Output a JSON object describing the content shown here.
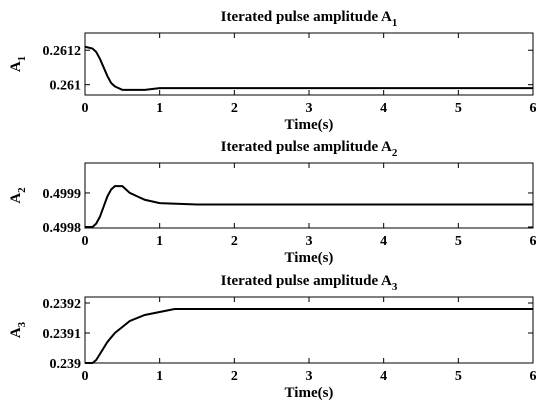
{
  "chart_data": [
    {
      "type": "line",
      "title": "Iterated pulse amplitude A",
      "title_subscript": "1",
      "xlabel": "Time(s)",
      "ylabel": "A",
      "ylabel_subscript": "1",
      "x": [
        0,
        0.1,
        0.15,
        0.2,
        0.25,
        0.3,
        0.35,
        0.4,
        0.45,
        0.5,
        0.55,
        0.6,
        0.8,
        1,
        2,
        3,
        4,
        5,
        6
      ],
      "series": [
        {
          "color": "#000000",
          "values": [
            0.26122,
            0.26121,
            0.26119,
            0.26115,
            0.2611,
            0.26105,
            0.26101,
            0.26099,
            0.26098,
            0.26097,
            0.26097,
            0.26097,
            0.26097,
            0.26098,
            0.26098,
            0.26098,
            0.26098,
            0.26098,
            0.26098
          ]
        }
      ],
      "xlim": [
        0,
        6
      ],
      "xticks": [
        0,
        1,
        2,
        3,
        4,
        5,
        6
      ],
      "ylim": [
        0.26094,
        0.2613
      ],
      "yticks": [
        0.261,
        0.2612
      ]
    },
    {
      "type": "line",
      "title": "Iterated pulse amplitude A",
      "title_subscript": "2",
      "xlabel": "Time(s)",
      "ylabel": "A",
      "ylabel_subscript": "2",
      "x": [
        0,
        0.1,
        0.15,
        0.2,
        0.25,
        0.3,
        0.35,
        0.4,
        0.45,
        0.5,
        0.55,
        0.6,
        0.8,
        1,
        1.5,
        2,
        3,
        4,
        5,
        6
      ],
      "series": [
        {
          "color": "#000000",
          "values": [
            0.4998,
            0.4998,
            0.49981,
            0.49983,
            0.49986,
            0.49989,
            0.49991,
            0.49992,
            0.49992,
            0.49992,
            0.49991,
            0.4999,
            0.49988,
            0.49987,
            0.499866,
            0.499866,
            0.499866,
            0.499866,
            0.499866,
            0.499866
          ]
        }
      ],
      "xlim": [
        0,
        6
      ],
      "xticks": [
        0,
        1,
        2,
        3,
        4,
        5,
        6
      ],
      "ylim": [
        0.499797,
        0.499988
      ],
      "yticks": [
        0.4998,
        0.4999
      ]
    },
    {
      "type": "line",
      "title": "Iterated pulse amplitude A",
      "title_subscript": "3",
      "xlabel": "Time(s)",
      "ylabel": "A",
      "ylabel_subscript": "3",
      "x": [
        0,
        0.1,
        0.15,
        0.2,
        0.3,
        0.4,
        0.5,
        0.6,
        0.8,
        1,
        1.2,
        1.5,
        2,
        3,
        4,
        5,
        6
      ],
      "series": [
        {
          "color": "#000000",
          "values": [
            0.239,
            0.239,
            0.23901,
            0.23903,
            0.23907,
            0.2391,
            0.23912,
            0.23914,
            0.23916,
            0.23917,
            0.23918,
            0.23918,
            0.23918,
            0.23918,
            0.23918,
            0.23918,
            0.23918
          ]
        }
      ],
      "xlim": [
        0,
        6
      ],
      "xticks": [
        0,
        1,
        2,
        3,
        4,
        5,
        6
      ],
      "ylim": [
        0.239,
        0.23922
      ],
      "yticks": [
        0.239,
        0.2391,
        0.2392
      ]
    }
  ]
}
